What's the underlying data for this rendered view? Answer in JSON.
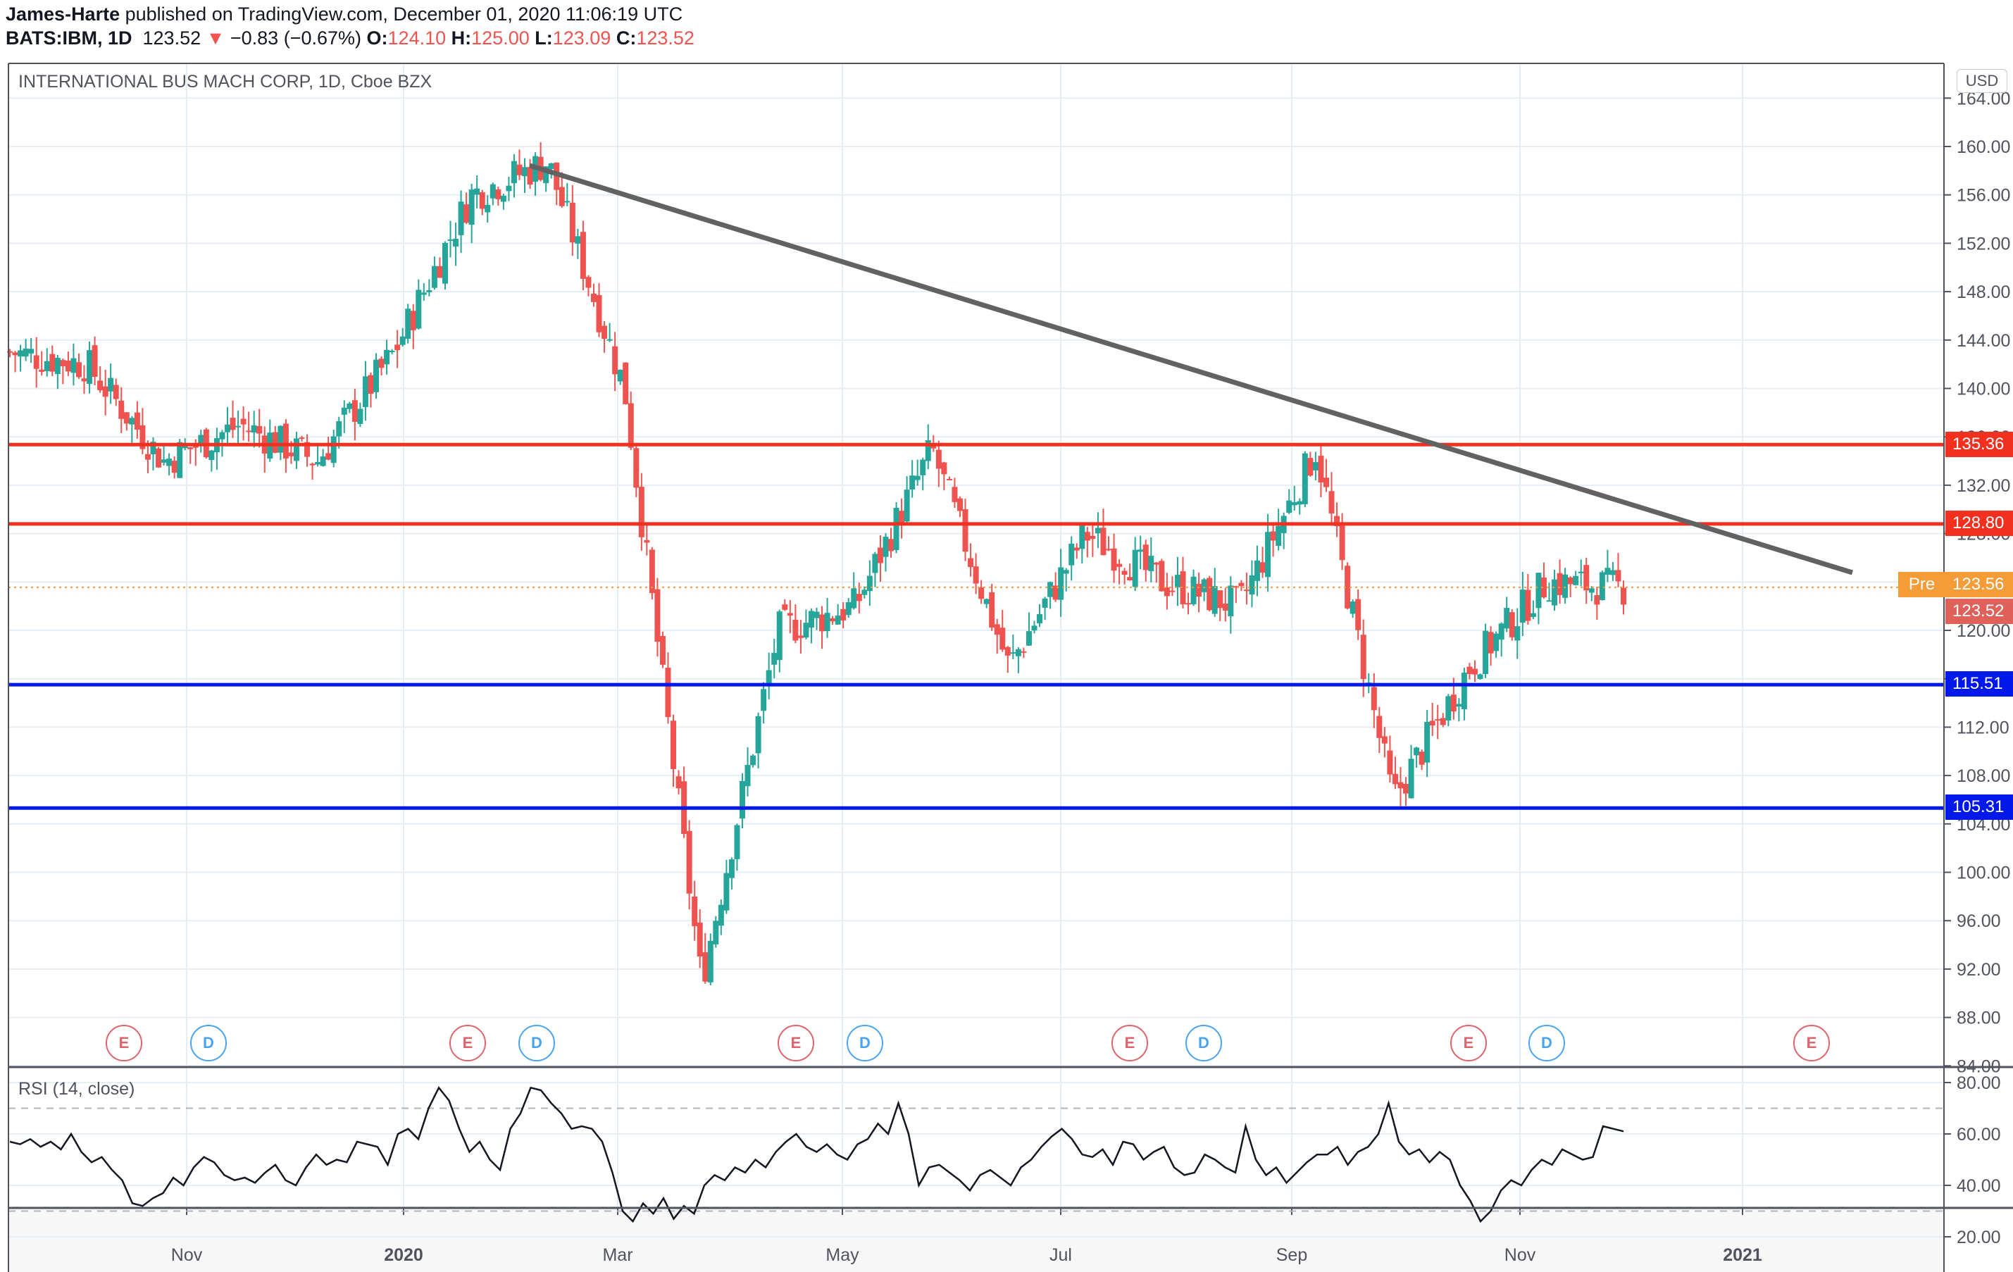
{
  "header": {
    "author": "James-Harte",
    "published_text": " published on TradingView.com, December 01, 2020 11:06:19 UTC",
    "symbol": "BATS:IBM, 1D",
    "last_price": "123.52",
    "change_arrow": "▼",
    "change": "−0.83 (−0.67%)",
    "open_label": "O:",
    "open": "124.10",
    "high_label": "H:",
    "high": "125.00",
    "low_label": "L:",
    "low": "123.09",
    "close_label": "C:",
    "close": "123.52"
  },
  "chart_title": "INTERNATIONAL BUS MACH CORP, 1D, Cboe BZX",
  "currency_badge": "USD",
  "rsi_title": "RSI (14, close)",
  "price_tags": {
    "resistance_high": "135.36",
    "resistance_low": "128.80",
    "pre_label": "Pre",
    "pre_price": "123.56",
    "last_price": "123.52",
    "support_high": "115.51",
    "support_low": "105.31"
  },
  "colors": {
    "up": "#26a69a",
    "down": "#ef5350",
    "resistance": "#f23020",
    "support": "#0018e8",
    "trendline": "#626262",
    "pre": "#f39c38",
    "last": "#e0605a",
    "earnings": "#e0636b",
    "dividend": "#4aa3f0"
  },
  "events": [
    {
      "type": "E",
      "label": "E"
    },
    {
      "type": "D",
      "label": "D"
    },
    {
      "type": "E",
      "label": "E"
    },
    {
      "type": "D",
      "label": "D"
    },
    {
      "type": "E",
      "label": "E"
    },
    {
      "type": "D",
      "label": "D"
    },
    {
      "type": "E",
      "label": "E"
    },
    {
      "type": "D",
      "label": "D"
    },
    {
      "type": "E",
      "label": "E"
    },
    {
      "type": "D",
      "label": "D"
    },
    {
      "type": "E",
      "label": "E"
    }
  ],
  "chart_data": [
    {
      "type": "candlestick",
      "title": "INTERNATIONAL BUS MACH CORP, 1D, Cboe BZX",
      "symbol": "BATS:IBM",
      "interval": "1D",
      "xlabel": "",
      "ylabel": "USD",
      "x_tick_labels": [
        "Nov",
        "2020",
        "Mar",
        "May",
        "Jul",
        "Sep",
        "Nov",
        "2021"
      ],
      "y_tick_labels": [
        "84.00",
        "88.00",
        "92.00",
        "96.00",
        "100.00",
        "104.00",
        "108.00",
        "112.00",
        "116.00",
        "120.00",
        "124.00",
        "128.00",
        "132.00",
        "136.00",
        "140.00",
        "144.00",
        "148.00",
        "152.00",
        "156.00",
        "160.00",
        "164.00"
      ],
      "ylim": [
        84,
        164
      ],
      "grid": true,
      "approx_price_path": [
        {
          "period": "Sep 2019",
          "approx_close": 143
        },
        {
          "period": "early Oct 2019",
          "approx_close": 142
        },
        {
          "period": "mid Oct 2019 (earnings drop)",
          "approx_close": 134
        },
        {
          "period": "Nov 2019",
          "approx_close": 137
        },
        {
          "period": "Dec 2019",
          "approx_close": 134
        },
        {
          "period": "Jan 2020 (earnings gap up)",
          "approx_close": 143
        },
        {
          "period": "late Jan 2020 high",
          "approx_close": 156
        },
        {
          "period": "Feb 2020 peak high",
          "approx_close": 158.75
        },
        {
          "period": "late Feb 2020",
          "approx_close": 140
        },
        {
          "period": "Mar 2020 low",
          "approx_close": 91
        },
        {
          "period": "Apr 2020",
          "approx_close": 120
        },
        {
          "period": "May 2020",
          "approx_close": 122
        },
        {
          "period": "Jun 2020 high",
          "approx_close": 135
        },
        {
          "period": "Jun 2020",
          "approx_close": 117
        },
        {
          "period": "Jul 2020",
          "approx_close": 128
        },
        {
          "period": "Aug 2020",
          "approx_close": 124
        },
        {
          "period": "Sep 2020",
          "approx_close": 122
        },
        {
          "period": "early Oct 2020 spike high",
          "approx_close": 135
        },
        {
          "period": "late Oct 2020 low",
          "approx_close": 106
        },
        {
          "period": "Nov 2020",
          "approx_close": 117
        },
        {
          "period": "late Nov 2020",
          "approx_close": 124
        },
        {
          "period": "Dec 01 2020",
          "approx_close": 123.52
        }
      ],
      "last_ohlc": {
        "open": 124.1,
        "high": 125.0,
        "low": 123.09,
        "close": 123.52,
        "change": -0.83,
        "change_pct": -0.67
      },
      "horizontal_lines": [
        {
          "name": "resistance",
          "value": 135.36,
          "color": "#f23020"
        },
        {
          "name": "resistance",
          "value": 128.8,
          "color": "#f23020"
        },
        {
          "name": "support",
          "value": 115.51,
          "color": "#0018e8"
        },
        {
          "name": "support",
          "value": 105.31,
          "color": "#0018e8"
        },
        {
          "name": "pre-market",
          "value": 123.56,
          "color": "#f39c38",
          "style": "dotted"
        }
      ],
      "trendline": {
        "from": {
          "date": "Feb 2020",
          "price": 158.5
        },
        "to": {
          "date": "Dec 2020",
          "price": 124.5
        },
        "color": "#626262"
      },
      "event_markers": [
        "E (Oct 2019)",
        "D (Nov 2019)",
        "E (Jan 2020)",
        "D (Feb 2020)",
        "E (Apr 2020)",
        "D (May 2020)",
        "E (Jul 2020)",
        "D (Aug 2020)",
        "E (Oct 2020)",
        "D (Nov 2020)",
        "E (Jan 2021)"
      ]
    },
    {
      "type": "line",
      "title": "RSI (14, close)",
      "ylim": [
        20,
        80
      ],
      "y_tick_labels": [
        "20.00",
        "40.00",
        "60.00",
        "80.00"
      ],
      "bands": [
        30,
        70
      ],
      "x_tick_labels": [
        "Nov",
        "2020",
        "Mar",
        "May",
        "Jul",
        "Sep",
        "Nov",
        "2021"
      ],
      "series": [
        {
          "name": "RSI",
          "values": [
            57,
            56,
            58,
            55,
            57,
            54,
            60,
            53,
            49,
            51,
            46,
            42,
            33,
            32,
            35,
            37,
            43,
            40,
            47,
            51,
            49,
            44,
            42,
            43,
            41,
            45,
            48,
            42,
            40,
            47,
            52,
            48,
            50,
            49,
            57,
            56,
            55,
            48,
            60,
            62,
            58,
            70,
            78,
            73,
            62,
            53,
            57,
            50,
            46,
            62,
            68,
            78,
            77,
            72,
            68,
            62,
            63,
            62,
            57,
            45,
            30,
            26,
            33,
            29,
            35,
            27,
            32,
            29,
            40,
            44,
            42,
            47,
            45,
            50,
            47,
            53,
            57,
            60,
            55,
            53,
            56,
            52,
            50,
            56,
            58,
            64,
            60,
            72,
            60,
            40,
            47,
            48,
            45,
            42,
            38,
            44,
            46,
            43,
            40,
            47,
            50,
            55,
            59,
            62,
            58,
            52,
            51,
            54,
            48,
            57,
            56,
            50,
            53,
            55,
            47,
            44,
            45,
            52,
            50,
            47,
            45,
            63,
            50,
            44,
            47,
            41,
            45,
            49,
            52,
            52,
            55,
            48,
            53,
            55,
            60,
            72,
            57,
            52,
            54,
            49,
            53,
            50,
            40,
            34,
            26,
            30,
            38,
            42,
            40,
            46,
            50,
            48,
            54,
            52,
            50,
            51,
            63,
            62,
            61
          ]
        }
      ]
    }
  ]
}
